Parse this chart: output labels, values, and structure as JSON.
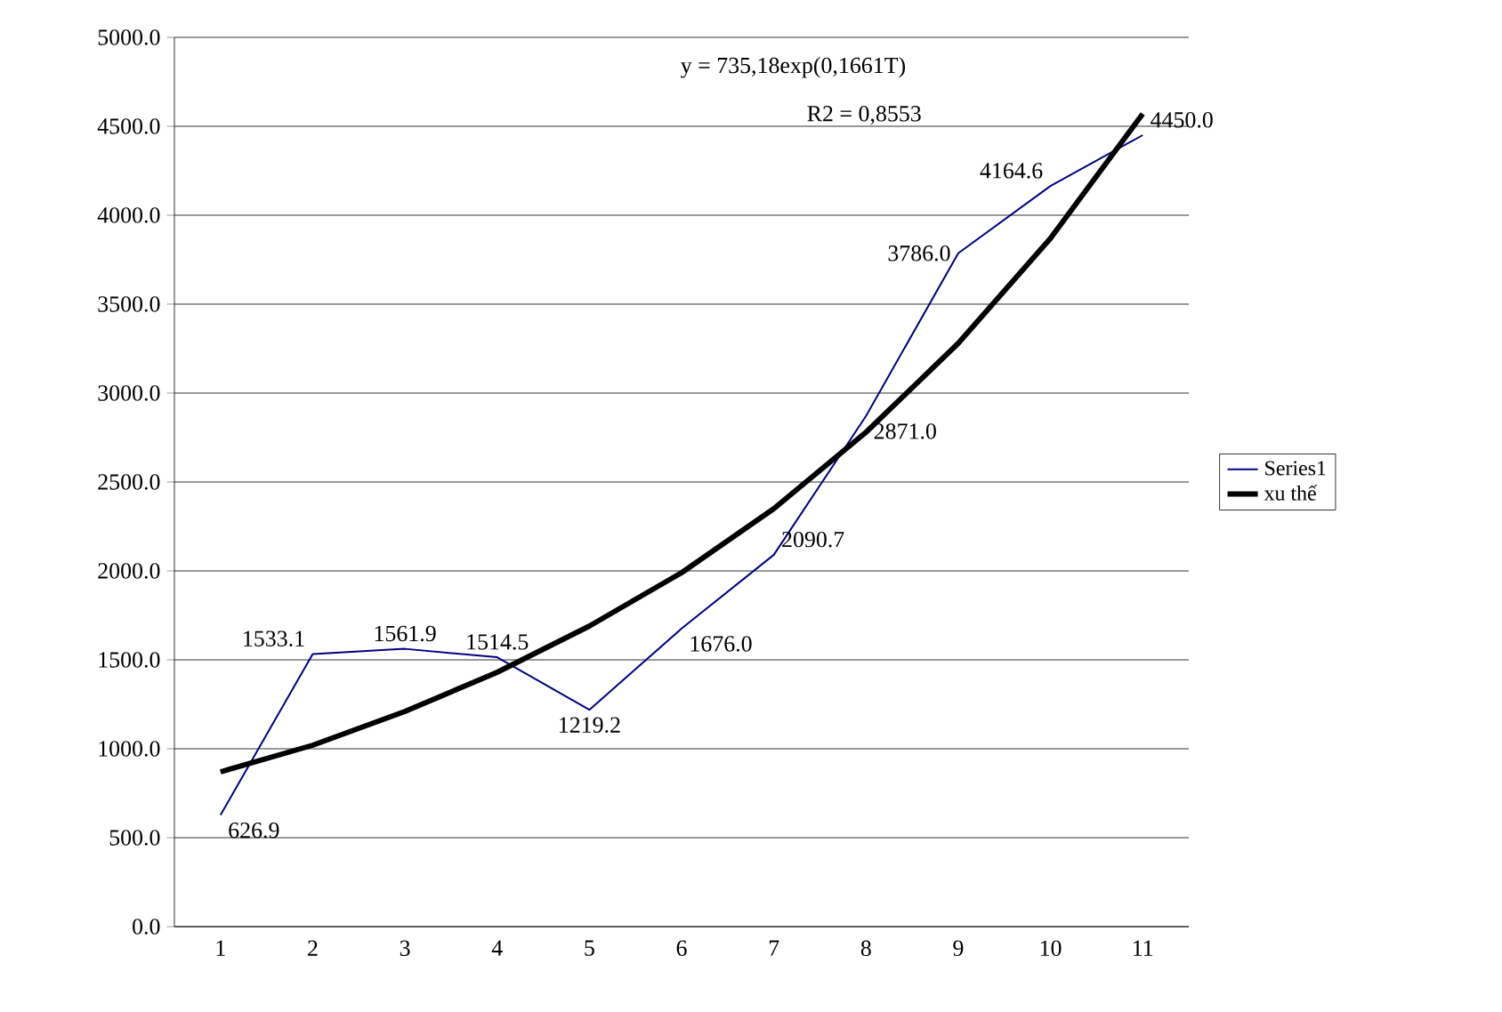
{
  "chart_data": {
    "type": "line",
    "categories": [
      "1",
      "2",
      "3",
      "4",
      "5",
      "6",
      "7",
      "8",
      "9",
      "10",
      "11"
    ],
    "series": [
      {
        "name": "Series1",
        "color": "#000080",
        "values": [
          626.9,
          1533.1,
          1561.9,
          1514.5,
          1219.2,
          1676.0,
          2090.7,
          2871.0,
          3786.0,
          4164.6,
          4450.0
        ],
        "value_labels": [
          "626.9",
          "1533.1",
          "1561.9",
          "1514.5",
          "1219.2",
          "1676.0",
          "2090.7",
          "2871.0",
          "3786.0",
          "4164.6",
          "4450.0"
        ]
      },
      {
        "name": "xu thế",
        "color": "#000000",
        "values": [
          870,
          1020,
          1210,
          1430,
          1690,
          1990,
          2350,
          2780,
          3280,
          3870,
          4570
        ]
      }
    ],
    "ylim": [
      0,
      5000
    ],
    "yticks": [
      {
        "value": 0,
        "label": "0.0"
      },
      {
        "value": 500,
        "label": "500.0"
      },
      {
        "value": 1000,
        "label": "1000.0"
      },
      {
        "value": 1500,
        "label": "1500.0"
      },
      {
        "value": 2000,
        "label": "2000.0"
      },
      {
        "value": 2500,
        "label": "2500.0"
      },
      {
        "value": 3000,
        "label": "3000.0"
      },
      {
        "value": 3500,
        "label": "3500.0"
      },
      {
        "value": 4000,
        "label": "4000.0"
      },
      {
        "value": 4500,
        "label": "4500.0"
      },
      {
        "value": 5000,
        "label": "5000.0"
      }
    ],
    "grid": "y",
    "legend": "right",
    "annotations": [
      "y = 735,18exp(0,1661T)",
      "R2 = 0,8553"
    ]
  }
}
